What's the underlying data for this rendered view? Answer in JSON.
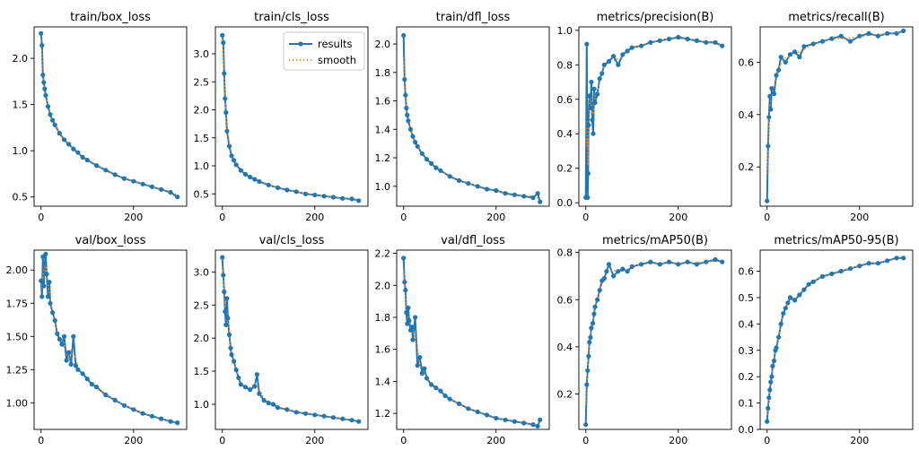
{
  "figure": {
    "legend": {
      "results_label": "results",
      "smooth_label": "smooth",
      "location": "upper-right of train/cls_loss"
    },
    "colors": {
      "results": "#1f77b4",
      "smooth": "#ff7f0e",
      "axis": "#000000"
    }
  },
  "chart_data": [
    {
      "type": "line",
      "title": "train/box_loss",
      "x_ticks": [
        0,
        200
      ],
      "y_ticks": [
        0.5,
        1.0,
        1.5,
        2.0
      ],
      "tick_labels_x": [
        "0",
        "200"
      ],
      "tick_labels_y": [
        "0.5",
        "1.0",
        "1.5",
        "2.0"
      ],
      "xlim": [
        -15,
        315
      ],
      "ylim": [
        0.4,
        2.34
      ],
      "series": [
        {
          "name": "results",
          "x": [
            0,
            2,
            4,
            6,
            8,
            10,
            15,
            20,
            25,
            30,
            40,
            50,
            60,
            70,
            80,
            90,
            100,
            120,
            140,
            160,
            180,
            200,
            220,
            240,
            260,
            280,
            295
          ],
          "values": [
            2.27,
            2.14,
            1.82,
            1.74,
            1.67,
            1.6,
            1.48,
            1.39,
            1.33,
            1.28,
            1.19,
            1.12,
            1.07,
            1.02,
            0.98,
            0.93,
            0.9,
            0.84,
            0.79,
            0.74,
            0.7,
            0.67,
            0.64,
            0.61,
            0.58,
            0.55,
            0.5
          ]
        }
      ]
    },
    {
      "type": "line",
      "title": "train/cls_loss",
      "x_ticks": [
        0,
        200
      ],
      "y_ticks": [
        0.5,
        1.0,
        1.5,
        2.0,
        2.5,
        3.0
      ],
      "tick_labels_x": [
        "0",
        "200"
      ],
      "tick_labels_y": [
        "0.5",
        "1.0",
        "1.5",
        "2.0",
        "2.5",
        "3.0"
      ],
      "xlim": [
        -15,
        315
      ],
      "ylim": [
        0.28,
        3.48
      ],
      "series": [
        {
          "name": "results",
          "x": [
            0,
            2,
            4,
            6,
            8,
            10,
            15,
            20,
            25,
            30,
            40,
            50,
            60,
            70,
            80,
            100,
            120,
            140,
            160,
            180,
            200,
            220,
            240,
            260,
            280,
            295
          ],
          "values": [
            3.33,
            3.2,
            2.65,
            2.2,
            1.95,
            1.62,
            1.35,
            1.18,
            1.1,
            1.02,
            0.92,
            0.85,
            0.8,
            0.76,
            0.72,
            0.66,
            0.61,
            0.57,
            0.54,
            0.5,
            0.48,
            0.46,
            0.44,
            0.42,
            0.41,
            0.38
          ]
        }
      ]
    },
    {
      "type": "line",
      "title": "train/dfl_loss",
      "x_ticks": [
        0,
        200
      ],
      "y_ticks": [
        1.0,
        1.2,
        1.4,
        1.6,
        1.8,
        2.0
      ],
      "tick_labels_x": [
        "0",
        "200"
      ],
      "tick_labels_y": [
        "1.0",
        "1.2",
        "1.4",
        "1.6",
        "1.8",
        "2.0"
      ],
      "xlim": [
        -15,
        315
      ],
      "ylim": [
        0.86,
        2.12
      ],
      "series": [
        {
          "name": "results",
          "x": [
            0,
            2,
            4,
            6,
            8,
            10,
            15,
            20,
            25,
            30,
            40,
            50,
            60,
            70,
            80,
            100,
            120,
            140,
            160,
            180,
            200,
            220,
            240,
            260,
            280,
            290,
            295
          ],
          "values": [
            2.06,
            1.75,
            1.64,
            1.55,
            1.5,
            1.46,
            1.4,
            1.35,
            1.31,
            1.28,
            1.23,
            1.19,
            1.16,
            1.13,
            1.11,
            1.07,
            1.04,
            1.02,
            1.0,
            0.98,
            0.97,
            0.95,
            0.94,
            0.93,
            0.92,
            0.95,
            0.89
          ]
        }
      ]
    },
    {
      "type": "line",
      "title": "metrics/precision(B)",
      "x_ticks": [
        0,
        200
      ],
      "y_ticks": [
        0.0,
        0.2,
        0.4,
        0.6,
        0.8,
        1.0
      ],
      "tick_labels_x": [
        "0",
        "200"
      ],
      "tick_labels_y": [
        "0.0",
        "0.2",
        "0.4",
        "0.6",
        "0.8",
        "1.0"
      ],
      "xlim": [
        -15,
        315
      ],
      "ylim": [
        -0.02,
        1.02
      ],
      "series": [
        {
          "name": "results",
          "x": [
            0,
            2,
            4,
            5,
            6,
            8,
            10,
            12,
            14,
            16,
            18,
            20,
            25,
            30,
            35,
            40,
            50,
            60,
            70,
            80,
            90,
            100,
            120,
            140,
            160,
            180,
            200,
            220,
            240,
            260,
            280,
            295
          ],
          "values": [
            0.03,
            0.92,
            0.03,
            0.17,
            0.45,
            0.62,
            0.55,
            0.7,
            0.48,
            0.4,
            0.66,
            0.58,
            0.63,
            0.72,
            0.75,
            0.8,
            0.82,
            0.85,
            0.8,
            0.86,
            0.88,
            0.9,
            0.91,
            0.93,
            0.94,
            0.95,
            0.96,
            0.95,
            0.94,
            0.93,
            0.93,
            0.91
          ]
        }
      ]
    },
    {
      "type": "line",
      "title": "metrics/recall(B)",
      "x_ticks": [
        0,
        200
      ],
      "y_ticks": [
        0.2,
        0.4,
        0.6
      ],
      "tick_labels_x": [
        "0",
        "200"
      ],
      "tick_labels_y": [
        "0.2",
        "0.4",
        "0.6"
      ],
      "xlim": [
        -15,
        315
      ],
      "ylim": [
        0.05,
        0.735
      ],
      "series": [
        {
          "name": "results",
          "x": [
            0,
            2,
            4,
            6,
            8,
            10,
            15,
            20,
            25,
            30,
            40,
            50,
            60,
            70,
            80,
            100,
            120,
            140,
            160,
            180,
            200,
            220,
            240,
            260,
            280,
            295
          ],
          "values": [
            0.07,
            0.28,
            0.39,
            0.47,
            0.42,
            0.5,
            0.48,
            0.55,
            0.57,
            0.62,
            0.6,
            0.63,
            0.64,
            0.62,
            0.66,
            0.67,
            0.68,
            0.69,
            0.7,
            0.68,
            0.7,
            0.71,
            0.7,
            0.71,
            0.71,
            0.72
          ]
        }
      ]
    },
    {
      "type": "line",
      "title": "val/box_loss",
      "x_ticks": [
        0,
        200
      ],
      "y_ticks": [
        1.0,
        1.25,
        1.5,
        1.75,
        2.0
      ],
      "tick_labels_x": [
        "0",
        "200"
      ],
      "tick_labels_y": [
        "1.00",
        "1.25",
        "1.50",
        "1.75",
        "2.00"
      ],
      "xlim": [
        -15,
        315
      ],
      "ylim": [
        0.8,
        2.15
      ],
      "series": [
        {
          "name": "results",
          "x": [
            0,
            2,
            4,
            6,
            8,
            10,
            12,
            15,
            18,
            20,
            25,
            30,
            35,
            40,
            45,
            50,
            55,
            60,
            65,
            70,
            75,
            80,
            90,
            100,
            110,
            120,
            140,
            160,
            180,
            200,
            220,
            240,
            260,
            280,
            295
          ],
          "values": [
            1.92,
            1.8,
            2.1,
            1.88,
            2.05,
            2.12,
            1.97,
            1.8,
            1.91,
            1.75,
            1.68,
            1.62,
            1.52,
            1.48,
            1.44,
            1.5,
            1.32,
            1.38,
            1.29,
            1.5,
            1.28,
            1.25,
            1.22,
            1.18,
            1.14,
            1.12,
            1.06,
            1.02,
            0.98,
            0.95,
            0.92,
            0.9,
            0.88,
            0.86,
            0.85
          ]
        }
      ]
    },
    {
      "type": "line",
      "title": "val/cls_loss",
      "x_ticks": [
        0,
        200
      ],
      "y_ticks": [
        1.0,
        1.5,
        2.0,
        2.5,
        3.0
      ],
      "tick_labels_x": [
        "0",
        "200"
      ],
      "tick_labels_y": [
        "1.0",
        "1.5",
        "2.0",
        "2.5",
        "3.0"
      ],
      "xlim": [
        -15,
        315
      ],
      "ylim": [
        0.62,
        3.33
      ],
      "series": [
        {
          "name": "results",
          "x": [
            0,
            2,
            4,
            6,
            8,
            10,
            12,
            15,
            18,
            20,
            25,
            30,
            35,
            40,
            50,
            60,
            70,
            75,
            80,
            90,
            100,
            110,
            120,
            140,
            160,
            180,
            200,
            220,
            240,
            260,
            280,
            295
          ],
          "values": [
            3.22,
            2.95,
            2.7,
            2.4,
            2.2,
            2.6,
            2.3,
            2.05,
            1.85,
            1.75,
            1.65,
            1.52,
            1.4,
            1.3,
            1.26,
            1.22,
            1.27,
            1.45,
            1.16,
            1.06,
            1.02,
            1.0,
            0.95,
            0.92,
            0.88,
            0.86,
            0.84,
            0.82,
            0.8,
            0.78,
            0.76,
            0.74
          ]
        }
      ]
    },
    {
      "type": "line",
      "title": "val/dfl_loss",
      "x_ticks": [
        0,
        200
      ],
      "y_ticks": [
        1.2,
        1.4,
        1.6,
        1.8,
        2.0,
        2.2
      ],
      "tick_labels_x": [
        "0",
        "200"
      ],
      "tick_labels_y": [
        "1.2",
        "1.4",
        "1.6",
        "1.8",
        "2.0",
        "2.2"
      ],
      "xlim": [
        -15,
        315
      ],
      "ylim": [
        1.1,
        2.22
      ],
      "series": [
        {
          "name": "results",
          "x": [
            0,
            2,
            4,
            6,
            8,
            10,
            12,
            15,
            18,
            20,
            25,
            30,
            35,
            40,
            45,
            50,
            60,
            70,
            80,
            90,
            100,
            120,
            140,
            160,
            180,
            200,
            220,
            240,
            260,
            280,
            290,
            295
          ],
          "values": [
            2.17,
            2.02,
            1.97,
            1.83,
            1.76,
            1.86,
            1.78,
            1.72,
            1.74,
            1.66,
            1.8,
            1.5,
            1.55,
            1.45,
            1.48,
            1.42,
            1.38,
            1.36,
            1.34,
            1.31,
            1.29,
            1.26,
            1.23,
            1.21,
            1.19,
            1.17,
            1.16,
            1.15,
            1.14,
            1.13,
            1.12,
            1.16
          ]
        }
      ]
    },
    {
      "type": "line",
      "title": "metrics/mAP50(B)",
      "x_ticks": [
        0,
        200
      ],
      "y_ticks": [
        0.2,
        0.4,
        0.6,
        0.8
      ],
      "tick_labels_x": [
        "0",
        "200"
      ],
      "tick_labels_y": [
        "0.2",
        "0.4",
        "0.6",
        "0.8"
      ],
      "xlim": [
        -15,
        315
      ],
      "ylim": [
        0.05,
        0.81
      ],
      "series": [
        {
          "name": "results",
          "x": [
            0,
            2,
            4,
            6,
            8,
            10,
            12,
            15,
            18,
            20,
            25,
            30,
            35,
            40,
            45,
            50,
            60,
            70,
            80,
            90,
            100,
            120,
            140,
            160,
            180,
            200,
            220,
            240,
            260,
            280,
            295
          ],
          "values": [
            0.07,
            0.24,
            0.3,
            0.36,
            0.42,
            0.44,
            0.48,
            0.5,
            0.54,
            0.57,
            0.6,
            0.64,
            0.68,
            0.69,
            0.72,
            0.75,
            0.7,
            0.72,
            0.73,
            0.72,
            0.74,
            0.75,
            0.76,
            0.75,
            0.76,
            0.75,
            0.76,
            0.75,
            0.76,
            0.77,
            0.76
          ]
        }
      ]
    },
    {
      "type": "line",
      "title": "metrics/mAP50-95(B)",
      "x_ticks": [
        0,
        200
      ],
      "y_ticks": [
        0.0,
        0.1,
        0.2,
        0.3,
        0.4,
        0.5,
        0.6
      ],
      "tick_labels_x": [
        "0",
        "200"
      ],
      "tick_labels_y": [
        "0.0",
        "0.1",
        "0.2",
        "0.3",
        "0.4",
        "0.5",
        "0.6"
      ],
      "xlim": [
        -15,
        315
      ],
      "ylim": [
        0.0,
        0.68
      ],
      "series": [
        {
          "name": "results",
          "x": [
            0,
            2,
            4,
            6,
            8,
            10,
            12,
            15,
            18,
            20,
            25,
            30,
            35,
            40,
            45,
            50,
            60,
            70,
            80,
            90,
            100,
            120,
            140,
            160,
            180,
            200,
            220,
            240,
            260,
            280,
            295
          ],
          "values": [
            0.03,
            0.08,
            0.12,
            0.15,
            0.18,
            0.2,
            0.24,
            0.26,
            0.3,
            0.31,
            0.35,
            0.4,
            0.44,
            0.46,
            0.48,
            0.5,
            0.49,
            0.51,
            0.53,
            0.55,
            0.56,
            0.58,
            0.59,
            0.6,
            0.61,
            0.62,
            0.63,
            0.63,
            0.64,
            0.65,
            0.65
          ]
        }
      ]
    }
  ]
}
